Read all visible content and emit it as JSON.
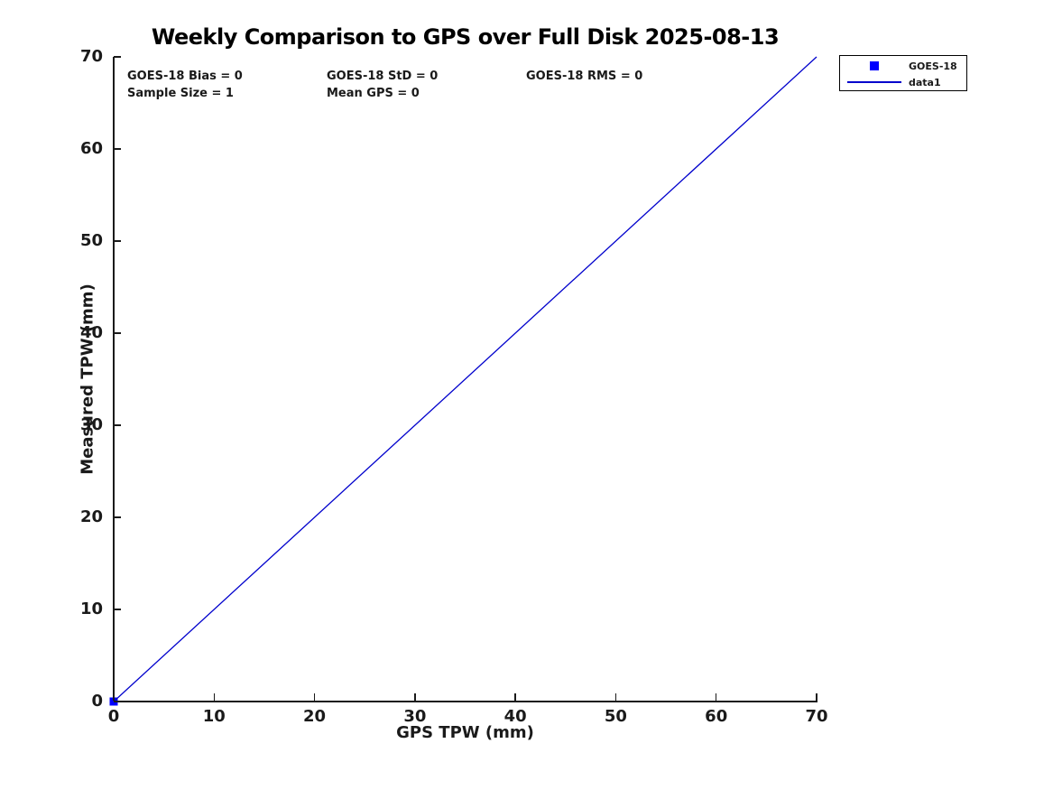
{
  "title": "Weekly Comparison to GPS over Full Disk 2025-08-13",
  "annotations": {
    "bias": "GOES-18 Bias = 0",
    "std": "GOES-18 StD = 0",
    "rms": "GOES-18 RMS = 0",
    "sample_size": "Sample Size = 1",
    "mean_gps": "Mean GPS = 0"
  },
  "legend": {
    "entries": [
      {
        "label": "GOES-18",
        "symbol": "square-marker",
        "color": "#0000ff"
      },
      {
        "label": "data1",
        "symbol": "line",
        "color": "#0000cc"
      }
    ]
  },
  "chart_data": {
    "type": "scatter",
    "title": "Weekly Comparison to GPS over Full Disk 2025-08-13",
    "xlabel": "GPS TPW (mm)",
    "ylabel": "Measured TPW (mm)",
    "xlim": [
      0,
      70
    ],
    "ylim": [
      0,
      70
    ],
    "xticks": [
      0,
      10,
      20,
      30,
      40,
      50,
      60,
      70
    ],
    "yticks": [
      0,
      10,
      20,
      30,
      40,
      50,
      60,
      70
    ],
    "grid": false,
    "legend_position": "outside-top-right",
    "series": [
      {
        "name": "GOES-18",
        "type": "scatter",
        "marker": "square",
        "color": "#0000ff",
        "points": [
          [
            0,
            0
          ]
        ]
      },
      {
        "name": "data1",
        "type": "line",
        "color": "#0000cc",
        "points": [
          [
            0,
            0
          ],
          [
            70,
            70
          ]
        ]
      }
    ]
  }
}
